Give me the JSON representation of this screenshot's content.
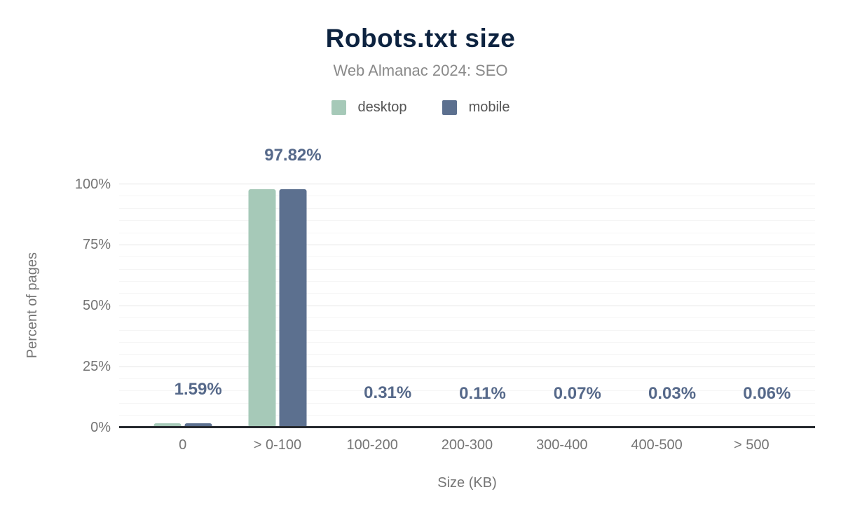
{
  "header": {
    "title": "Robots.txt size",
    "subtitle": "Web Almanac 2024: SEO"
  },
  "legend": [
    {
      "label": "desktop",
      "color": "#a6c9b8"
    },
    {
      "label": "mobile",
      "color": "#5c708f"
    }
  ],
  "chart_data": {
    "type": "bar",
    "title": "Robots.txt size",
    "subtitle": "Web Almanac 2024: SEO",
    "categories": [
      "0",
      "> 0-100",
      "100-200",
      "200-300",
      "300-400",
      "400-500",
      "> 500"
    ],
    "series": [
      {
        "name": "desktop",
        "color": "#a6c9b8",
        "values": [
          1.59,
          97.82,
          0.31,
          0.11,
          0.07,
          0.03,
          0.06
        ]
      },
      {
        "name": "mobile",
        "color": "#5c708f",
        "values": [
          1.59,
          97.82,
          0.31,
          0.11,
          0.07,
          0.03,
          0.06
        ]
      }
    ],
    "data_labels": [
      "1.59%",
      "97.82%",
      "0.31%",
      "0.11%",
      "0.07%",
      "0.03%",
      "0.06%"
    ],
    "data_labels_series": "mobile",
    "xlabel": "Size (KB)",
    "ylabel": "Percent of pages",
    "ylim": [
      0,
      100
    ],
    "yticks": [
      {
        "value": 0,
        "label": "0%"
      },
      {
        "value": 25,
        "label": "25%"
      },
      {
        "value": 50,
        "label": "50%"
      },
      {
        "value": 75,
        "label": "75%"
      },
      {
        "value": 100,
        "label": "100%"
      }
    ],
    "grid": {
      "major_step": 25,
      "minor_step": 5,
      "minor_on": true
    },
    "legend_position": "top"
  },
  "colors": {
    "title": "#0d2340",
    "subtitle": "#8a8a8a",
    "axis_text": "#757575",
    "data_label": "#56698a",
    "grid_major": "#e4e4e4",
    "grid_minor": "#f5f5f5",
    "baseline": "#26292e"
  }
}
